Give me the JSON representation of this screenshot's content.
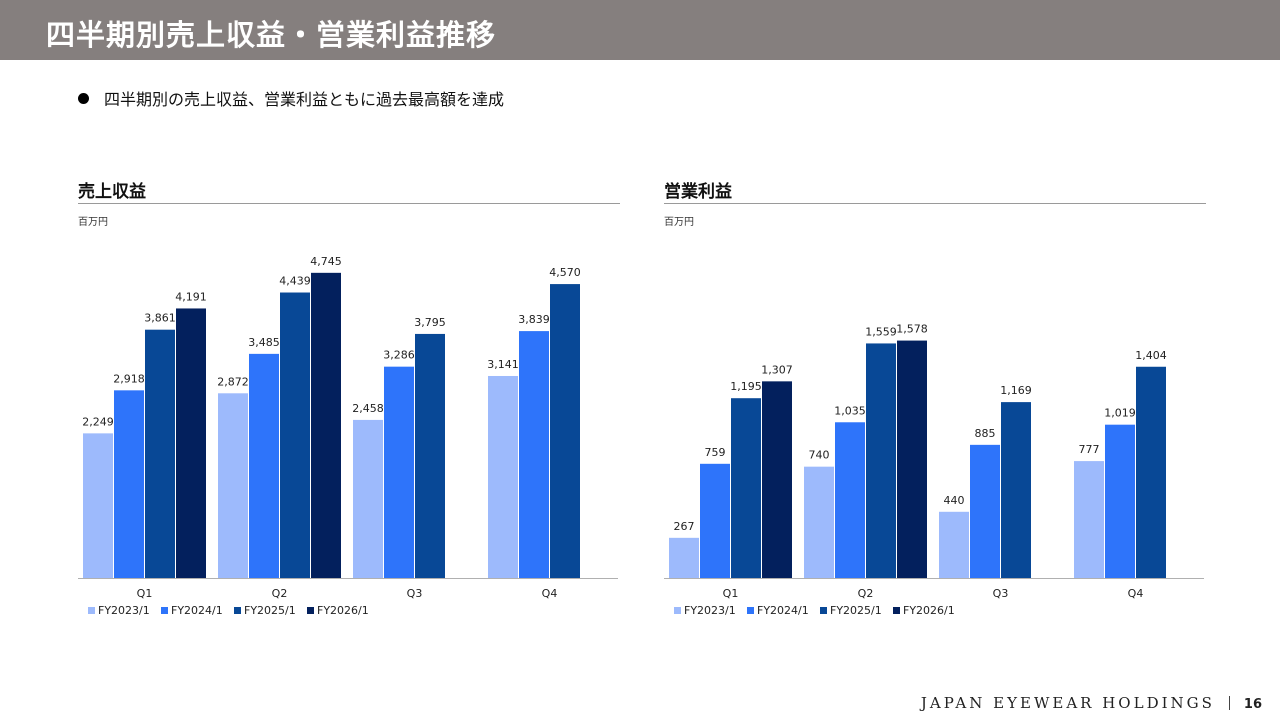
{
  "header": {
    "title": "四半期別売上収益・営業利益推移"
  },
  "bullet": {
    "text": "四半期別の売上収益、営業利益ともに過去最高額を達成"
  },
  "panels": [
    {
      "title": "売上収益",
      "unit": "百万円"
    },
    {
      "title": "営業利益",
      "unit": "百万円"
    }
  ],
  "chart_data": [
    {
      "type": "bar",
      "title": "売上収益",
      "ylabel": "百万円",
      "categories": [
        "Q1",
        "Q2",
        "Q3",
        "Q4"
      ],
      "series": [
        {
          "name": "FY2023/1",
          "values": [
            2249,
            2872,
            2458,
            3141
          ],
          "color": "#9dbafc"
        },
        {
          "name": "FY2024/1",
          "values": [
            2918,
            3485,
            3286,
            3839
          ],
          "color": "#2e74fa"
        },
        {
          "name": "FY2025/1",
          "values": [
            3861,
            4439,
            3795,
            4570
          ],
          "color": "#084896"
        },
        {
          "name": "FY2026/1",
          "values": [
            4191,
            4745,
            null,
            null
          ],
          "color": "#03205d"
        }
      ],
      "ylim": [
        0,
        5100
      ],
      "grid": false,
      "legend": "bottom-left"
    },
    {
      "type": "bar",
      "title": "営業利益",
      "ylabel": "百万円",
      "categories": [
        "Q1",
        "Q2",
        "Q3",
        "Q4"
      ],
      "series": [
        {
          "name": "FY2023/1",
          "values": [
            267,
            740,
            440,
            777
          ],
          "color": "#9dbafc"
        },
        {
          "name": "FY2024/1",
          "values": [
            759,
            1035,
            885,
            1019
          ],
          "color": "#2e74fa"
        },
        {
          "name": "FY2025/1",
          "values": [
            1195,
            1559,
            1169,
            1404
          ],
          "color": "#084896"
        },
        {
          "name": "FY2026/1",
          "values": [
            1307,
            1578,
            null,
            null
          ],
          "color": "#03205d"
        }
      ],
      "ylim": [
        0,
        2180
      ],
      "grid": false,
      "legend": "bottom-left"
    }
  ],
  "footer": {
    "company": "JAPAN EYEWEAR HOLDINGS",
    "page": "16"
  },
  "colors": {
    "header_bg": "#857f7e"
  }
}
